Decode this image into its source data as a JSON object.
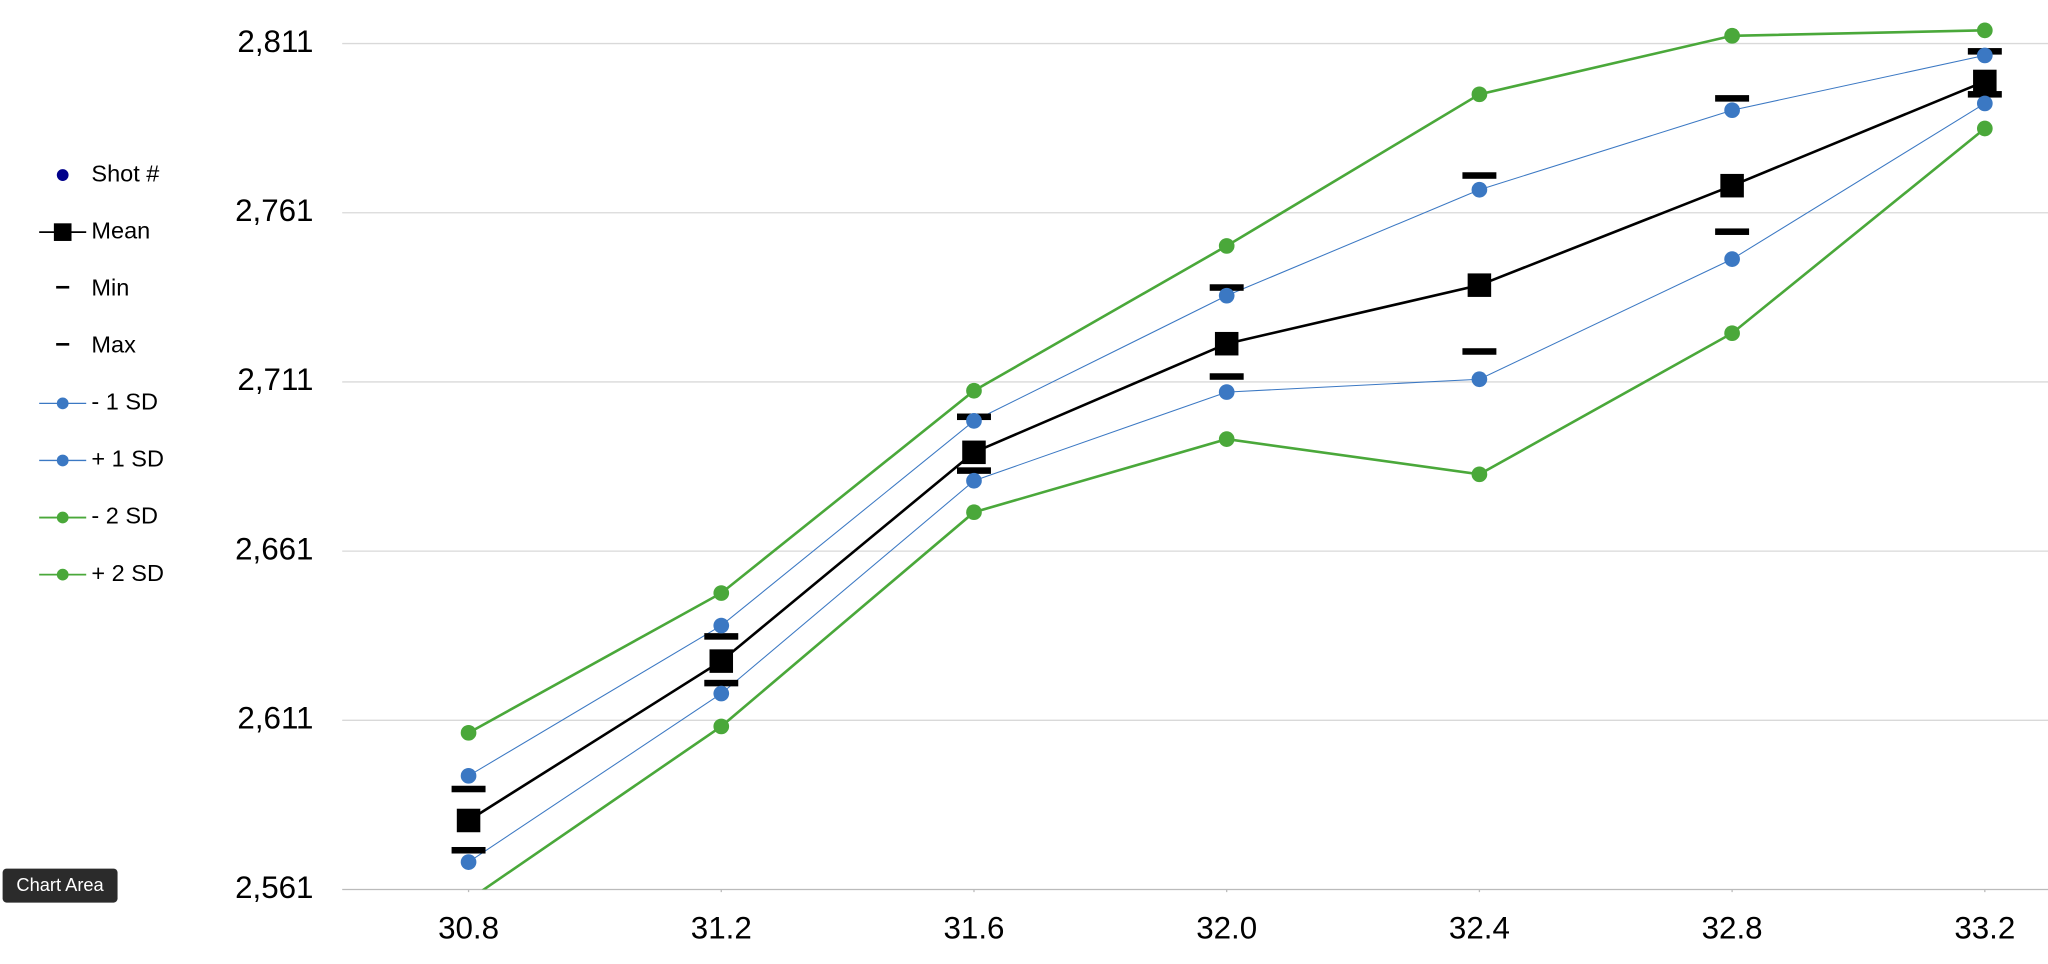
{
  "chart_data": {
    "type": "line",
    "x": [
      30.8,
      31.2,
      31.6,
      32.0,
      32.4,
      32.8,
      33.2
    ],
    "xlim": [
      30.6,
      33.3
    ],
    "xticks": [
      30.8,
      31.2,
      31.6,
      {
        "value": 32,
        "label": "32.0"
      },
      32.4,
      32.8,
      33.2
    ],
    "ylim": [
      2561,
      2820
    ],
    "yticks": [
      {
        "value": 2561,
        "label": "2,561"
      },
      {
        "value": 2611,
        "label": "2,611"
      },
      {
        "value": 2661,
        "label": "2,661"
      },
      {
        "value": 2711,
        "label": "2,711"
      },
      {
        "value": 2761,
        "label": "2,761"
      },
      {
        "value": 2811,
        "label": "2,811"
      }
    ],
    "grid": true,
    "legend": "left",
    "series": [
      {
        "name": "Shot #",
        "color": "#00008b",
        "marker": "circle",
        "line_width": 0,
        "values": [
          null,
          null,
          null,
          null,
          null,
          null,
          null
        ]
      },
      {
        "name": "Mean",
        "color": "#000000",
        "marker": "square",
        "line_width": 2,
        "values": [
          2581.4,
          2628.5,
          2690.2,
          2722.3,
          2739.6,
          2769,
          2799.8
        ]
      },
      {
        "name": "Min",
        "color": "#000000",
        "marker": "dash",
        "line_width": 0,
        "values": [
          2572.6,
          2622,
          2684.8,
          2712.6,
          2720,
          2755.4,
          2796
        ]
      },
      {
        "name": "Max",
        "color": "#000000",
        "marker": "dash",
        "line_width": 0,
        "values": [
          2590.7,
          2635.8,
          2700.7,
          2738.9,
          2772,
          2794.8,
          2808.7
        ]
      },
      {
        "name": "- 1 SD",
        "color": "#3b78c3",
        "marker": "circle",
        "line_width": 0.8,
        "values": [
          2569.1,
          2618.9,
          2681.8,
          2708,
          2711.8,
          2747.3,
          2793.3
        ]
      },
      {
        "name": "+ 1 SD",
        "color": "#3b78c3",
        "marker": "circle",
        "line_width": 0.8,
        "values": [
          2594.6,
          2639,
          2699.5,
          2736.5,
          2767.8,
          2791.3,
          2807.5
        ]
      },
      {
        "name": "- 2 SD",
        "color": "#4aa83a",
        "marker": "circle",
        "line_width": 2,
        "values": [
          2557.9,
          2609.2,
          2672.5,
          2694.1,
          2683.7,
          2725.4,
          2785.9
        ]
      },
      {
        "name": "+ 2 SD",
        "color": "#4aa83a",
        "marker": "circle",
        "line_width": 2,
        "values": [
          2607.3,
          2648.6,
          2708.4,
          2751.2,
          2796,
          2813.3,
          2814.9
        ]
      }
    ],
    "tooltip": "Chart Area"
  }
}
